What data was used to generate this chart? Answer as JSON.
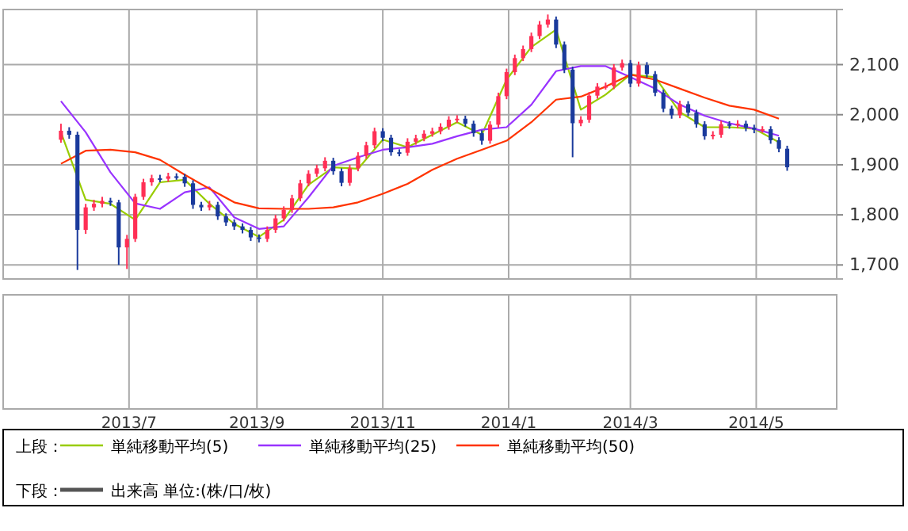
{
  "chart_data": [
    {
      "type": "candlestick",
      "tick_labels": "y",
      "x": [
        "2013-05-29",
        "2013-06-02",
        "2013-06-06",
        "2013-06-10",
        "2013-06-14",
        "2013-06-18",
        "2013-06-22",
        "2013-06-26",
        "2013-06-30",
        "2013-07-04",
        "2013-07-08",
        "2013-07-12",
        "2013-07-16",
        "2013-07-20",
        "2013-07-24",
        "2013-07-28",
        "2013-08-01",
        "2013-08-05",
        "2013-08-09",
        "2013-08-13",
        "2013-08-17",
        "2013-08-21",
        "2013-08-25",
        "2013-08-29",
        "2013-09-02",
        "2013-09-06",
        "2013-09-10",
        "2013-09-14",
        "2013-09-18",
        "2013-09-22",
        "2013-09-26",
        "2013-09-30",
        "2013-10-04",
        "2013-10-08",
        "2013-10-12",
        "2013-10-16",
        "2013-10-20",
        "2013-10-24",
        "2013-10-28",
        "2013-11-01",
        "2013-11-05",
        "2013-11-09",
        "2013-11-13",
        "2013-11-17",
        "2013-11-21",
        "2013-11-25",
        "2013-11-29",
        "2013-12-03",
        "2013-12-07",
        "2013-12-11",
        "2013-12-15",
        "2013-12-19",
        "2013-12-23",
        "2013-12-27",
        "2013-12-31",
        "2014-01-04",
        "2014-01-08",
        "2014-01-12",
        "2014-01-16",
        "2014-01-20",
        "2014-01-24",
        "2014-01-28",
        "2014-02-01",
        "2014-02-05",
        "2014-02-09",
        "2014-02-13",
        "2014-02-17",
        "2014-02-21",
        "2014-02-25",
        "2014-03-01",
        "2014-03-05",
        "2014-03-09",
        "2014-03-13",
        "2014-03-17",
        "2014-03-21",
        "2014-03-25",
        "2014-03-29",
        "2014-04-02",
        "2014-04-06",
        "2014-04-10",
        "2014-04-14",
        "2014-04-18",
        "2014-04-22",
        "2014-04-26",
        "2014-04-30",
        "2014-05-04",
        "2014-05-08",
        "2014-05-12",
        "2014-05-16"
      ],
      "ohlc": [
        [
          1950,
          1982,
          1944,
          1968
        ],
        [
          1968,
          1975,
          1952,
          1960
        ],
        [
          1960,
          1966,
          1690,
          1770
        ],
        [
          1770,
          1822,
          1762,
          1815
        ],
        [
          1815,
          1830,
          1808,
          1822
        ],
        [
          1822,
          1836,
          1815,
          1828
        ],
        [
          1828,
          1834,
          1818,
          1825
        ],
        [
          1825,
          1830,
          1700,
          1735
        ],
        [
          1735,
          1760,
          1692,
          1752
        ],
        [
          1752,
          1842,
          1746,
          1836
        ],
        [
          1836,
          1872,
          1830,
          1865
        ],
        [
          1865,
          1880,
          1858,
          1873
        ],
        [
          1873,
          1880,
          1865,
          1872
        ],
        [
          1872,
          1884,
          1866,
          1877
        ],
        [
          1877,
          1883,
          1870,
          1876
        ],
        [
          1876,
          1882,
          1856,
          1863
        ],
        [
          1863,
          1869,
          1812,
          1820
        ],
        [
          1820,
          1826,
          1808,
          1815
        ],
        [
          1815,
          1828,
          1809,
          1820
        ],
        [
          1820,
          1826,
          1790,
          1797
        ],
        [
          1797,
          1803,
          1778,
          1785
        ],
        [
          1785,
          1791,
          1770,
          1777
        ],
        [
          1777,
          1783,
          1763,
          1770
        ],
        [
          1770,
          1776,
          1748,
          1755
        ],
        [
          1755,
          1761,
          1745,
          1752
        ],
        [
          1752,
          1777,
          1746,
          1770
        ],
        [
          1770,
          1800,
          1764,
          1793
        ],
        [
          1793,
          1817,
          1787,
          1810
        ],
        [
          1810,
          1840,
          1804,
          1833
        ],
        [
          1833,
          1870,
          1827,
          1863
        ],
        [
          1863,
          1889,
          1857,
          1882
        ],
        [
          1882,
          1900,
          1876,
          1893
        ],
        [
          1893,
          1915,
          1887,
          1908
        ],
        [
          1908,
          1914,
          1880,
          1887
        ],
        [
          1887,
          1893,
          1857,
          1864
        ],
        [
          1864,
          1900,
          1858,
          1893
        ],
        [
          1893,
          1925,
          1887,
          1918
        ],
        [
          1918,
          1946,
          1912,
          1939
        ],
        [
          1939,
          1974,
          1933,
          1967
        ],
        [
          1967,
          1973,
          1947,
          1954
        ],
        [
          1954,
          1960,
          1918,
          1925
        ],
        [
          1925,
          1931,
          1917,
          1924
        ],
        [
          1924,
          1953,
          1918,
          1946
        ],
        [
          1946,
          1960,
          1940,
          1953
        ],
        [
          1953,
          1969,
          1947,
          1962
        ],
        [
          1962,
          1974,
          1956,
          1967
        ],
        [
          1967,
          1983,
          1961,
          1976
        ],
        [
          1976,
          1997,
          1970,
          1990
        ],
        [
          1990,
          1999,
          1984,
          1992
        ],
        [
          1992,
          1998,
          1976,
          1982
        ],
        [
          1982,
          1988,
          1956,
          1963
        ],
        [
          1963,
          1969,
          1940,
          1948
        ],
        [
          1948,
          1987,
          1942,
          1980
        ],
        [
          1980,
          2044,
          1974,
          2037
        ],
        [
          2037,
          2092,
          2031,
          2085
        ],
        [
          2085,
          2120,
          2079,
          2113
        ],
        [
          2113,
          2138,
          2107,
          2131
        ],
        [
          2131,
          2164,
          2125,
          2157
        ],
        [
          2157,
          2187,
          2151,
          2180
        ],
        [
          2180,
          2200,
          2174,
          2190
        ],
        [
          2190,
          2196,
          2133,
          2140
        ],
        [
          2140,
          2146,
          2083,
          2090
        ],
        [
          2090,
          2096,
          1915,
          1983
        ],
        [
          1983,
          1997,
          1977,
          1990
        ],
        [
          1990,
          2045,
          1984,
          2038
        ],
        [
          2038,
          2063,
          2032,
          2056
        ],
        [
          2056,
          2064,
          2050,
          2057
        ],
        [
          2057,
          2101,
          2051,
          2094
        ],
        [
          2094,
          2110,
          2088,
          2103
        ],
        [
          2103,
          2109,
          2055,
          2062
        ],
        [
          2062,
          2106,
          2056,
          2099
        ],
        [
          2099,
          2105,
          2074,
          2081
        ],
        [
          2081,
          2087,
          2037,
          2044
        ],
        [
          2044,
          2050,
          2005,
          2012
        ],
        [
          2012,
          2018,
          1992,
          1999
        ],
        [
          1999,
          2028,
          1993,
          2021
        ],
        [
          2021,
          2027,
          1997,
          2004
        ],
        [
          2004,
          2010,
          1974,
          1981
        ],
        [
          1981,
          1987,
          1950,
          1957
        ],
        [
          1957,
          1967,
          1951,
          1960
        ],
        [
          1960,
          1988,
          1954,
          1981
        ],
        [
          1981,
          1987,
          1972,
          1979
        ],
        [
          1979,
          1989,
          1973,
          1982
        ],
        [
          1982,
          1988,
          1967,
          1974
        ],
        [
          1974,
          1980,
          1963,
          1970
        ],
        [
          1970,
          1977,
          1964,
          1971
        ],
        [
          1971,
          1977,
          1942,
          1949
        ],
        [
          1949,
          1955,
          1925,
          1932
        ],
        [
          1932,
          1938,
          1888,
          1895
        ]
      ],
      "series": [
        {
          "type": "line",
          "name": "単純移動平均(5)",
          "color": "#99cc00",
          "x": [
            "2013-05-29",
            "2013-06-10",
            "2013-06-22",
            "2013-07-04",
            "2013-07-16",
            "2013-07-28",
            "2013-08-09",
            "2013-08-21",
            "2013-09-02",
            "2013-09-14",
            "2013-09-26",
            "2013-10-08",
            "2013-10-20",
            "2013-11-01",
            "2013-11-13",
            "2013-11-25",
            "2013-12-07",
            "2013-12-19",
            "2013-12-31",
            "2014-01-12",
            "2014-01-24",
            "2014-02-05",
            "2014-02-17",
            "2014-03-01",
            "2014-03-13",
            "2014-03-25",
            "2014-04-06",
            "2014-04-18",
            "2014-04-30",
            "2014-05-12"
          ],
          "values": [
            1965,
            1830,
            1822,
            1790,
            1865,
            1870,
            1822,
            1782,
            1756,
            1790,
            1860,
            1895,
            1892,
            1950,
            1935,
            1960,
            1985,
            1960,
            2070,
            2135,
            2170,
            2010,
            2040,
            2080,
            2075,
            2005,
            1975,
            1975,
            1972,
            1945
          ]
        },
        {
          "type": "line",
          "name": "単純移動平均(25)",
          "color": "#9933ff",
          "x": [
            "2013-05-29",
            "2013-06-10",
            "2013-06-22",
            "2013-07-04",
            "2013-07-16",
            "2013-07-28",
            "2013-08-09",
            "2013-08-21",
            "2013-09-02",
            "2013-09-14",
            "2013-09-26",
            "2013-10-08",
            "2013-10-20",
            "2013-11-01",
            "2013-11-13",
            "2013-11-25",
            "2013-12-07",
            "2013-12-19",
            "2013-12-31",
            "2014-01-12",
            "2014-01-24",
            "2014-02-05",
            "2014-02-17",
            "2014-03-01",
            "2014-03-13",
            "2014-03-25",
            "2014-04-06",
            "2014-04-18",
            "2014-04-30",
            "2014-05-12"
          ],
          "values": [
            2027,
            1965,
            1885,
            1823,
            1812,
            1845,
            1855,
            1795,
            1772,
            1777,
            1835,
            1898,
            1915,
            1930,
            1935,
            1942,
            1957,
            1970,
            1975,
            2020,
            2087,
            2097,
            2097,
            2075,
            2052,
            2020,
            1998,
            1983,
            1972,
            1958
          ]
        },
        {
          "type": "line",
          "name": "単純移動平均(50)",
          "color": "#ff3300",
          "x": [
            "2013-05-29",
            "2013-06-10",
            "2013-06-22",
            "2013-07-04",
            "2013-07-16",
            "2013-07-28",
            "2013-08-09",
            "2013-08-21",
            "2013-09-02",
            "2013-09-14",
            "2013-09-26",
            "2013-10-08",
            "2013-10-20",
            "2013-11-01",
            "2013-11-13",
            "2013-11-25",
            "2013-12-07",
            "2013-12-19",
            "2013-12-31",
            "2014-01-12",
            "2014-01-24",
            "2014-02-05",
            "2014-02-17",
            "2014-03-01",
            "2014-03-13",
            "2014-03-25",
            "2014-04-06",
            "2014-04-18",
            "2014-04-30",
            "2014-05-12"
          ],
          "values": [
            1902,
            1928,
            1930,
            1925,
            1910,
            1880,
            1852,
            1825,
            1813,
            1812,
            1812,
            1815,
            1825,
            1842,
            1862,
            1890,
            1912,
            1930,
            1948,
            1985,
            2030,
            2036,
            2056,
            2080,
            2070,
            2052,
            2034,
            2018,
            2010,
            1992
          ]
        }
      ],
      "xlim": [
        "2013-05-01",
        "2014-06-09"
      ],
      "xticks": [
        {
          "value": "2013-07-01",
          "label": "2013/7"
        },
        {
          "value": "2013-09-01",
          "label": "2013/9"
        },
        {
          "value": "2013-11-01",
          "label": "2013/11"
        },
        {
          "value": "2014-01-01",
          "label": "2014/1"
        },
        {
          "value": "2014-03-01",
          "label": "2014/3"
        },
        {
          "value": "2014-05-01",
          "label": "2014/5"
        }
      ],
      "ylim": [
        1672,
        2210
      ],
      "yticks": [
        {
          "value": 1700,
          "label": "1,700"
        },
        {
          "value": 1800,
          "label": "1,800"
        },
        {
          "value": 1900,
          "label": "1,900"
        },
        {
          "value": 2000,
          "label": "2,000"
        },
        {
          "value": 2100,
          "label": "2,100"
        }
      ],
      "grid": true,
      "legend": "bottom",
      "annotations": [
        "上段："
      ]
    },
    {
      "type": "other",
      "series": [
        {
          "type": "bar",
          "name": "出来高 単位:(株/口/枚)",
          "color": "#555555"
        }
      ],
      "legend": "bottom",
      "annotations": [
        "下段："
      ]
    }
  ]
}
